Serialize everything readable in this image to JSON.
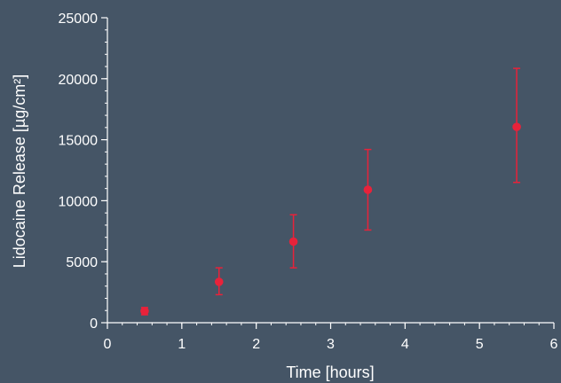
{
  "chart_data": {
    "type": "scatter",
    "xlabel": "Time [hours]",
    "ylabel": "Lidocaine Release [µg/cm²]",
    "xlim": [
      0,
      6
    ],
    "ylim": [
      0,
      25000
    ],
    "x_ticks": [
      0,
      1,
      2,
      3,
      4,
      5,
      6
    ],
    "y_ticks": [
      0,
      5000,
      10000,
      15000,
      20000,
      25000
    ],
    "x_minor_step": 0.2,
    "y_minor_step": 1000,
    "grid": false,
    "marker_color": "#e8223a",
    "axis_color": "#ffffff",
    "background": "#455566",
    "series": [
      {
        "points": [
          {
            "x": 0.5,
            "y": 950,
            "err_low": 650,
            "err_high": 1250
          },
          {
            "x": 1.5,
            "y": 3350,
            "err_low": 2300,
            "err_high": 4500
          },
          {
            "x": 2.5,
            "y": 6650,
            "err_low": 4500,
            "err_high": 8850
          },
          {
            "x": 3.5,
            "y": 10900,
            "err_low": 7600,
            "err_high": 14200
          },
          {
            "x": 5.5,
            "y": 16050,
            "err_low": 11500,
            "err_high": 20850
          }
        ]
      }
    ]
  }
}
